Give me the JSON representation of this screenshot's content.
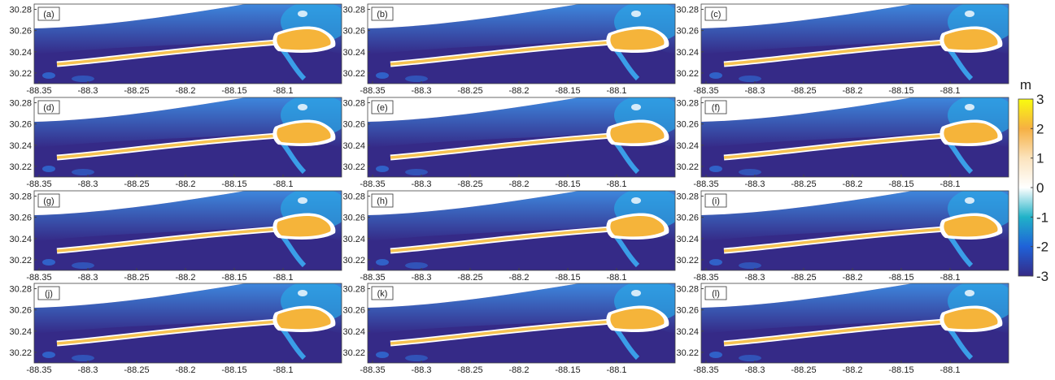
{
  "chart_data": {
    "type": "map",
    "panels": [
      {
        "label": "(a)"
      },
      {
        "label": "(b)"
      },
      {
        "label": "(c)"
      },
      {
        "label": "(d)"
      },
      {
        "label": "(e)"
      },
      {
        "label": "(f)"
      },
      {
        "label": "(g)"
      },
      {
        "label": "(h)"
      },
      {
        "label": "(i)"
      },
      {
        "label": "(j)"
      },
      {
        "label": "(k)"
      },
      {
        "label": "(l)"
      }
    ],
    "xlim": [
      -88.355,
      -88.04
    ],
    "ylim": [
      30.21,
      30.285
    ],
    "xticks": [
      -88.35,
      -88.3,
      -88.25,
      -88.2,
      -88.15,
      -88.1
    ],
    "yticks": [
      30.22,
      30.24,
      30.26,
      30.28
    ],
    "colorbar": {
      "label": "m",
      "lim": [
        -3,
        3
      ],
      "ticks": [
        3,
        2,
        1,
        0,
        -1,
        -2,
        -3
      ],
      "colors": [
        "#352a87",
        "#1f62d8",
        "#20b2c8",
        "#ffffff",
        "#fbe3bd",
        "#f6b042",
        "#f9fb0e"
      ]
    }
  }
}
